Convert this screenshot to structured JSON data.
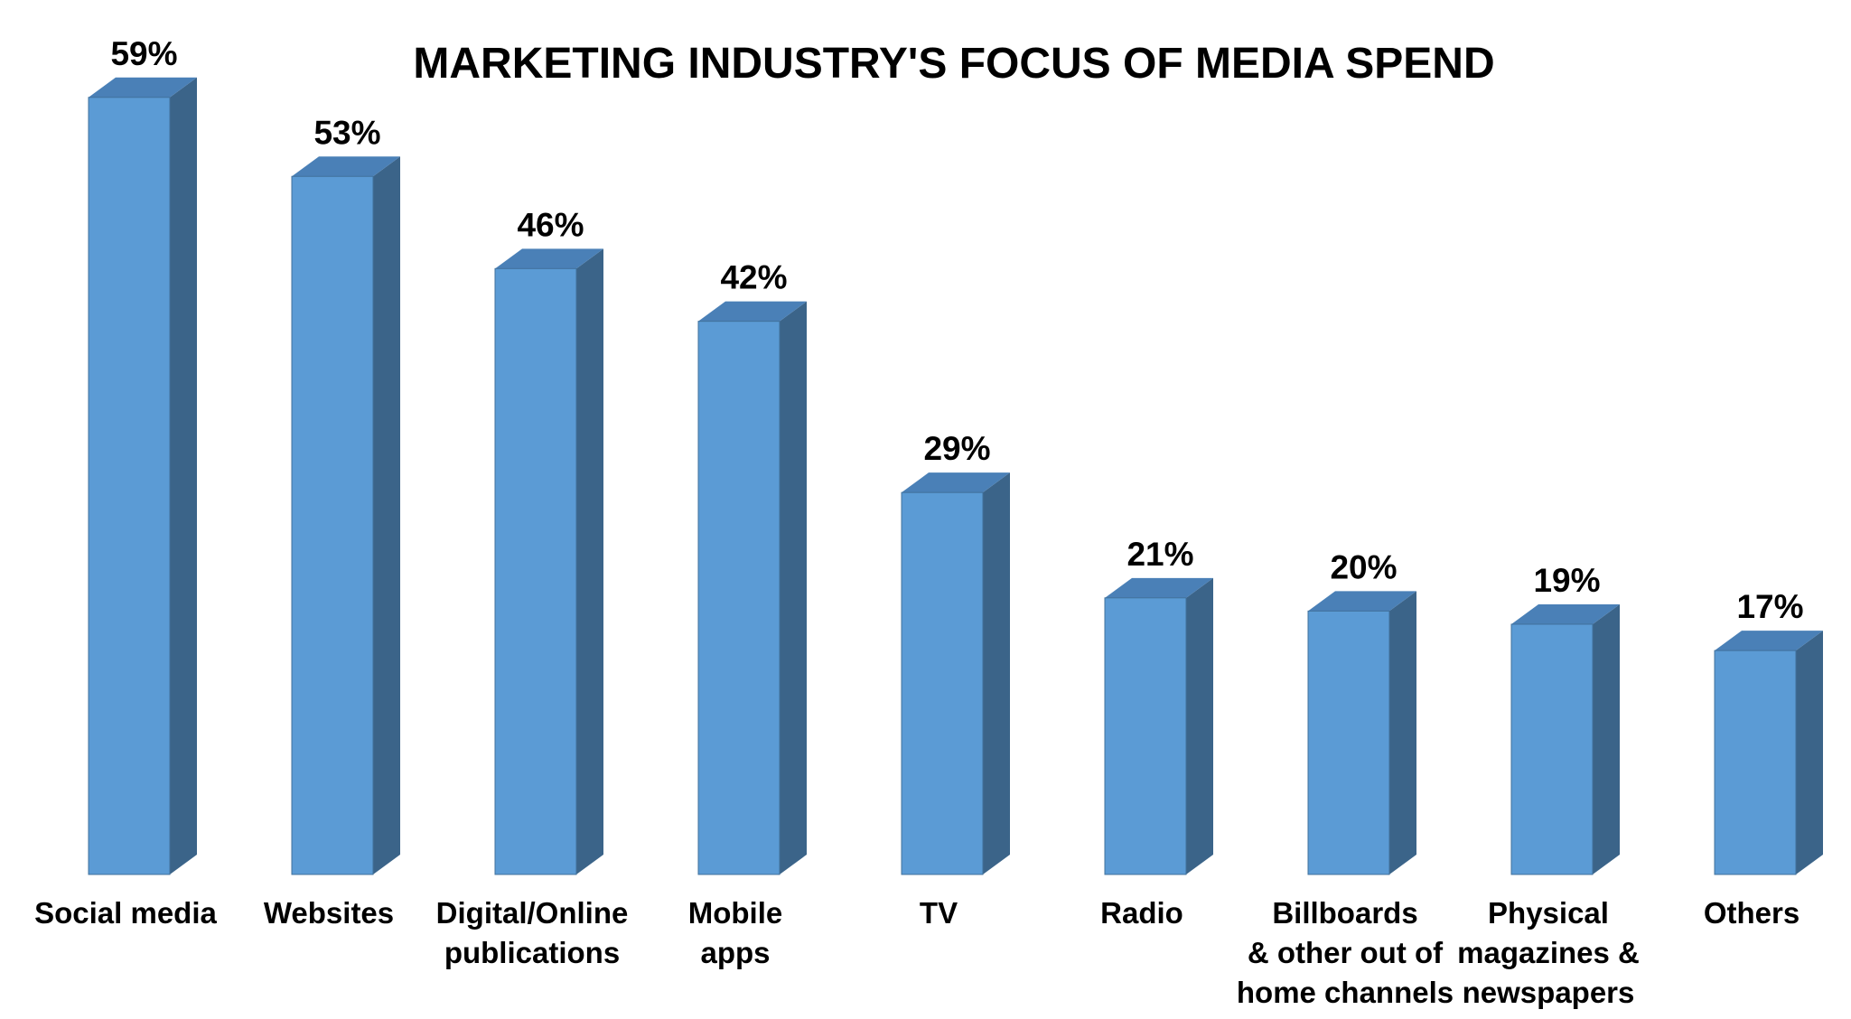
{
  "chart_data": {
    "type": "bar",
    "title": "MARKETING INDUSTRY'S FOCUS OF MEDIA SPEND",
    "categories": [
      "Social media",
      "Websites",
      "Digital/Online publications",
      "Mobile apps",
      "TV",
      "Radio",
      "Billboards & other out of home channels",
      "Physical magazines & newspapers",
      "Others"
    ],
    "category_label_lines": [
      [
        "Social media"
      ],
      [
        "Websites"
      ],
      [
        "Digital/Online",
        "publications"
      ],
      [
        "Mobile",
        "apps"
      ],
      [
        "TV"
      ],
      [
        "Radio"
      ],
      [
        "Billboards",
        "& other out of",
        "home channels"
      ],
      [
        "Physical",
        "magazines &",
        "newspapers"
      ],
      [
        "Others"
      ]
    ],
    "values": [
      59,
      53,
      46,
      42,
      29,
      21,
      20,
      19,
      17
    ],
    "data_labels": [
      "59%",
      "53%",
      "46%",
      "42%",
      "29%",
      "21%",
      "20%",
      "19%",
      "17%"
    ],
    "unit": "%",
    "xlabel": "",
    "ylabel": "",
    "ylim": [
      0,
      60
    ],
    "grid": false,
    "legend": "none",
    "bar_style": "3d",
    "colors": {
      "bar_front": "#5b9bd5",
      "bar_side": "#3b6489",
      "bar_top": "#4a80b7",
      "bar_edge": "#41719c",
      "text": "#000000"
    }
  }
}
